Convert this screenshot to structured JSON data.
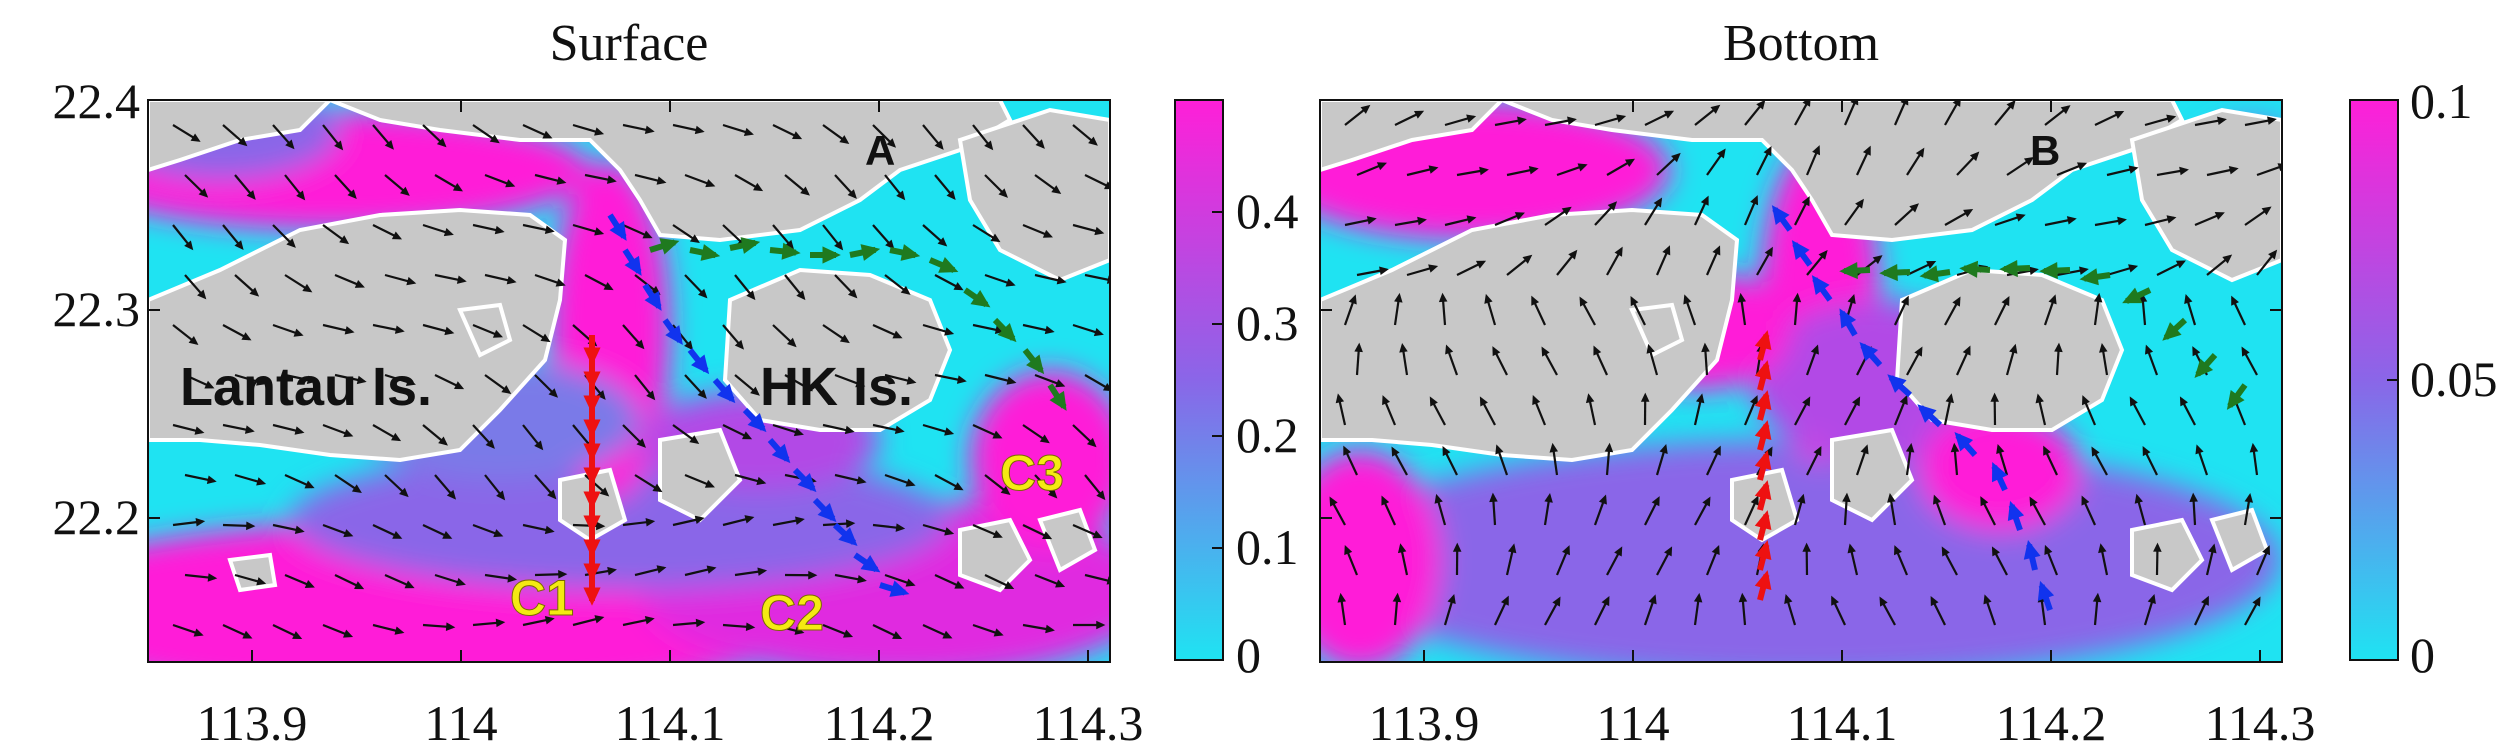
{
  "chart_data": [
    {
      "type": "heatmap",
      "panel": "A",
      "title": "Surface",
      "panel_label": "A",
      "x_ticks": [
        "113.9",
        "114",
        "114.1",
        "114.2",
        "114.3"
      ],
      "y_ticks": [
        "22.4",
        "22.3",
        "22.2"
      ],
      "xlim": [
        113.85,
        114.31
      ],
      "ylim": [
        22.13,
        22.4
      ],
      "colorbar": {
        "min": 0,
        "max": 0.5,
        "ticks": [
          "0.4",
          "0.3",
          "0.2",
          "0.1",
          "0"
        ]
      },
      "annotations": [
        "Lantau Is.",
        "HK Is.",
        "C1",
        "C2",
        "C3"
      ]
    },
    {
      "type": "heatmap",
      "panel": "B",
      "title": "Bottom",
      "panel_label": "B",
      "x_ticks": [
        "113.9",
        "114",
        "114.1",
        "114.2",
        "114.3"
      ],
      "colorbar": {
        "min": 0,
        "max": 0.1,
        "ticks": [
          "0.1",
          "0.05",
          "0"
        ]
      }
    }
  ],
  "colors": {
    "cyan": "#1fe3f2",
    "purple": "#8a66e8",
    "magenta": "#ff1fd8",
    "land": "#c8c8c8",
    "red_arrow": "#ee1111",
    "blue_arrow": "#1133ee",
    "green_arrow": "#1f7a1f"
  }
}
